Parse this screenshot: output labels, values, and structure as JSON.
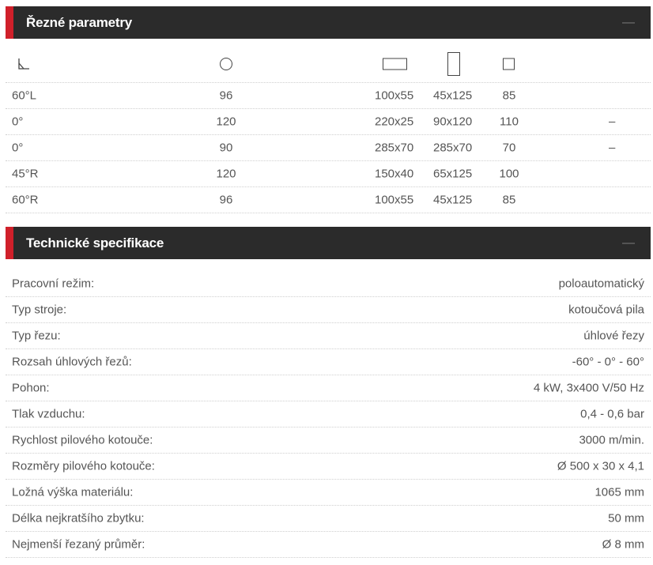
{
  "cutting": {
    "title": "Řezné parametry",
    "collapse_symbol": "—",
    "header_icons": [
      "angle-icon",
      "round-bar-icon",
      "flat-rectangle-icon",
      "tall-rectangle-icon",
      "square-icon"
    ],
    "rows": [
      {
        "angle": "60°L",
        "round": "96",
        "flat": "100x55",
        "tall": "45x125",
        "square": "85",
        "extra": ""
      },
      {
        "angle": "0°",
        "round": "120",
        "flat": "220x25",
        "tall": "90x120",
        "square": "110",
        "extra": "–"
      },
      {
        "angle": "0°",
        "round": "90",
        "flat": "285x70",
        "tall": "285x70",
        "square": "70",
        "extra": "–"
      },
      {
        "angle": "45°R",
        "round": "120",
        "flat": "150x40",
        "tall": "65x125",
        "square": "100",
        "extra": ""
      },
      {
        "angle": "60°R",
        "round": "96",
        "flat": "100x55",
        "tall": "45x125",
        "square": "85",
        "extra": ""
      }
    ]
  },
  "specs": {
    "title": "Technické specifikace",
    "collapse_symbol": "—",
    "rows": [
      {
        "label": "Pracovní režim:",
        "value": "poloautomatický"
      },
      {
        "label": "Typ stroje:",
        "value": "kotoučová pila"
      },
      {
        "label": "Typ řezu:",
        "value": "úhlové řezy"
      },
      {
        "label": "Rozsah úhlových řezů:",
        "value": "-60° - 0° - 60°"
      },
      {
        "label": "Pohon:",
        "value": "4 kW, 3x400 V/50 Hz"
      },
      {
        "label": "Tlak vzduchu:",
        "value": "0,4 - 0,6 bar"
      },
      {
        "label": "Rychlost pilového kotouče:",
        "value": "3000 m/min."
      },
      {
        "label": "Rozměry pilového kotouče:",
        "value": "Ø 500 x 30 x 4,1"
      },
      {
        "label": "Ložná výška materiálu:",
        "value": "1065 mm"
      },
      {
        "label": "Délka nejkratšího zbytku:",
        "value": "50 mm"
      },
      {
        "label": "Nejmenší řezaný průměr:",
        "value": "Ø 8 mm"
      }
    ]
  },
  "colors": {
    "accent": "#d0202a",
    "header_bg": "#2b2b2b"
  }
}
